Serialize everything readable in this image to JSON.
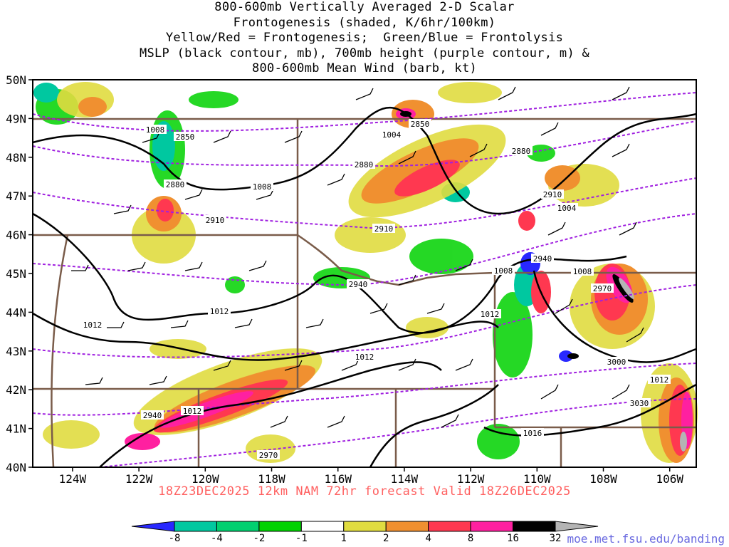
{
  "title": {
    "line1": "800-600mb Vertically Averaged 2-D Scalar",
    "line2": "Frontogenesis (shaded, K/6hr/100km)",
    "line3": "Yellow/Red = Frontogenesis;  Green/Blue = Frontolysis",
    "line4": "MSLP (black contour, mb), 700mb height (purple contour, m) &",
    "line5": "800-600mb Mean Wind (barb, kt)"
  },
  "axes": {
    "lat_labels": [
      "50N",
      "49N",
      "48N",
      "47N",
      "46N",
      "45N",
      "44N",
      "43N",
      "42N",
      "41N",
      "40N"
    ],
    "lon_labels": [
      "124W",
      "122W",
      "120W",
      "118W",
      "116W",
      "114W",
      "112W",
      "110W",
      "108W",
      "106W"
    ],
    "lat_range": [
      40,
      50
    ],
    "lon_range": [
      -125.2,
      -105.2
    ]
  },
  "contours": {
    "mslp_labels": [
      "1008",
      "1004",
      "1008",
      "1004",
      "1008",
      "1008",
      "1012",
      "1012",
      "1012",
      "1012",
      "1012",
      "1012",
      "1016"
    ],
    "height_labels": [
      "2850",
      "2850",
      "2880",
      "2880",
      "2880",
      "2910",
      "2910",
      "2910",
      "2940",
      "2940",
      "2970",
      "3000",
      "3030",
      "2970",
      "2940"
    ]
  },
  "colorbar": {
    "labels": [
      "-8",
      "-4",
      "-2",
      "-1",
      "1",
      "2",
      "4",
      "8",
      "16",
      "32"
    ],
    "colors": [
      "#2828ff",
      "#00c8a0",
      "#00d070",
      "#00d200",
      "#ffffff",
      "#e0dc40",
      "#f09030",
      "#ff3850",
      "#ff20a0",
      "#000000",
      "#b4b4b4"
    ]
  },
  "caption": "18Z23DEC2025 12km NAM 72hr forecast Valid 18Z26DEC2025",
  "credit": "moe.met.fsu.edu/banding"
}
